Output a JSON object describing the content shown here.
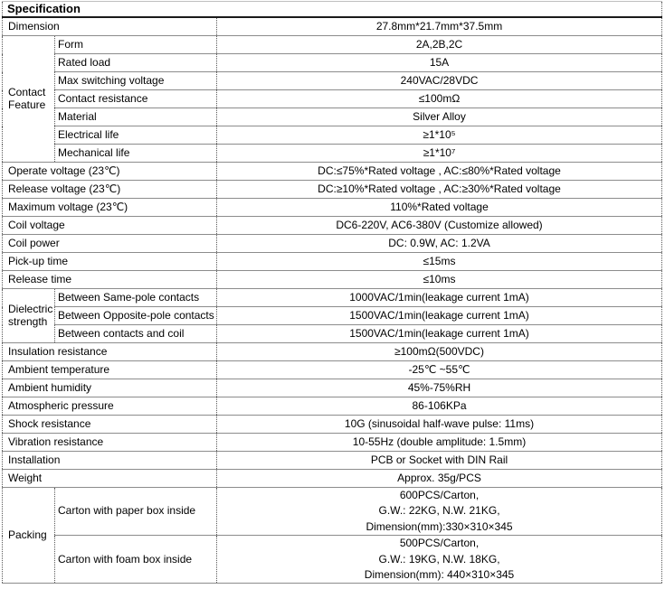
{
  "spec": {
    "title": "Specification",
    "dimension": {
      "label": "Dimension",
      "value": "27.8mm*21.7mm*37.5mm"
    },
    "contact_feature": {
      "label": "Contact Feature",
      "items": [
        {
          "label": "Form",
          "value": "2A,2B,2C"
        },
        {
          "label": "Rated load",
          "value": "15A"
        },
        {
          "label": "Max switching voltage",
          "value": "240VAC/28VDC"
        },
        {
          "label": "Contact resistance",
          "value": "≤100mΩ"
        },
        {
          "label": "Material",
          "value": "Silver Alloy"
        },
        {
          "label": "Electrical life",
          "value": "≥1*10⁵"
        },
        {
          "label": "Mechanical life",
          "value": "≥1*10⁷"
        }
      ]
    },
    "operate_voltage": {
      "label": "Operate voltage (23℃)",
      "value": "DC:≤75%*Rated voltage , AC:≤80%*Rated voltage"
    },
    "release_voltage": {
      "label": "Release voltage (23℃)",
      "value": "DC:≥10%*Rated voltage , AC:≥30%*Rated voltage"
    },
    "maximum_voltage": {
      "label": "Maximum voltage (23℃)",
      "value": "110%*Rated voltage"
    },
    "coil_voltage": {
      "label": "Coil voltage",
      "value": "DC6-220V, AC6-380V (Customize allowed)"
    },
    "coil_power": {
      "label": "Coil power",
      "value": "DC: 0.9W, AC: 1.2VA"
    },
    "pickup_time": {
      "label": "Pick-up time",
      "value": "≤15ms"
    },
    "release_time": {
      "label": "Release time",
      "value": "≤10ms"
    },
    "dielectric_strength": {
      "label": "Dielectric strength",
      "items": [
        {
          "label": "Between Same-pole contacts",
          "value": "1000VAC/1min(leakage current 1mA)"
        },
        {
          "label": "Between Opposite-pole contacts",
          "value": "1500VAC/1min(leakage current 1mA)"
        },
        {
          "label": "Between contacts and coil",
          "value": "1500VAC/1min(leakage current 1mA)"
        }
      ]
    },
    "insulation_resistance": {
      "label": "Insulation resistance",
      "value": "≥100mΩ(500VDC)"
    },
    "ambient_temperature": {
      "label": "Ambient temperature",
      "value": "-25℃ ~55℃"
    },
    "ambient_humidity": {
      "label": "Ambient humidity",
      "value": "45%-75%RH"
    },
    "atmospheric_pressure": {
      "label": "Atmospheric pressure",
      "value": "86-106KPa"
    },
    "shock_resistance": {
      "label": "Shock resistance",
      "value": "10G (sinusoidal half-wave pulse: 11ms)"
    },
    "vibration_resistance": {
      "label": "Vibration resistance",
      "value": "10-55Hz (double amplitude: 1.5mm)"
    },
    "installation": {
      "label": "Installation",
      "value": "PCB or Socket with DIN Rail"
    },
    "weight": {
      "label": "Weight",
      "value": "Approx. 35g/PCS"
    },
    "packing": {
      "label": "Packing",
      "items": [
        {
          "label": "Carton with paper box inside",
          "value": "600PCS/Carton,\nG.W.: 22KG, N.W. 21KG,\nDimension(mm):330×310×345"
        },
        {
          "label": "Carton with foam box inside",
          "value": "500PCS/Carton,\nG.W.: 19KG, N.W. 18KG,\nDimension(mm): 440×310×345"
        }
      ]
    }
  }
}
